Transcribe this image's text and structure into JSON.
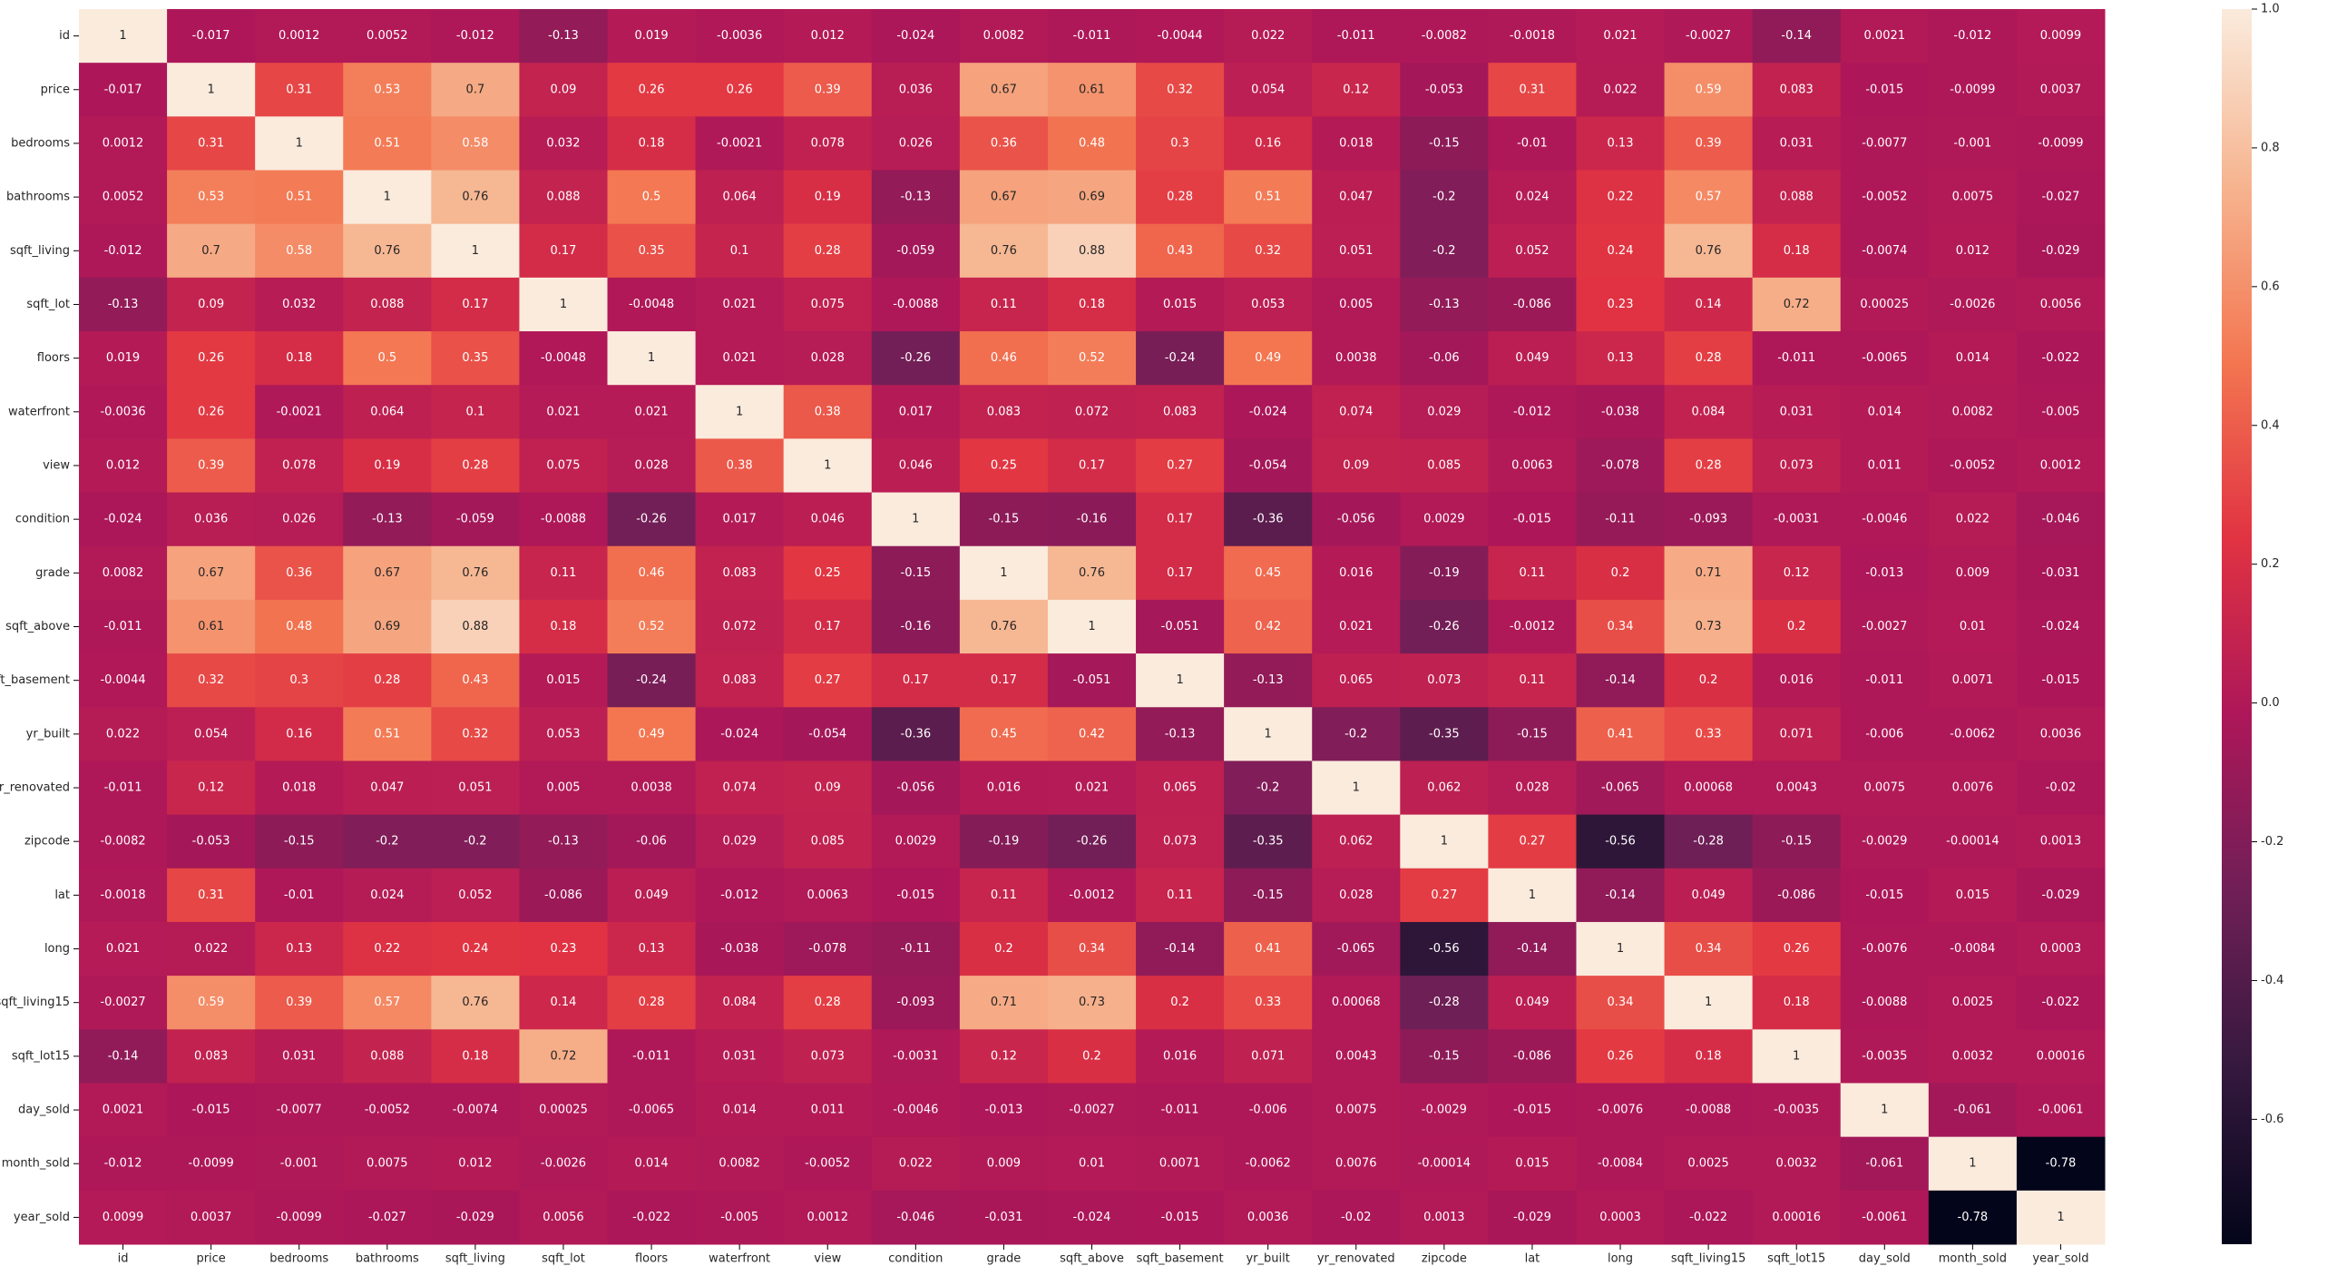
{
  "chart_data": {
    "type": "heatmap",
    "categories": [
      "id",
      "price",
      "bedrooms",
      "bathrooms",
      "sqft_living",
      "sqft_lot",
      "floors",
      "waterfront",
      "view",
      "condition",
      "grade",
      "sqft_above",
      "sqft_basement",
      "yr_built",
      "yr_renovated",
      "zipcode",
      "lat",
      "long",
      "sqft_living15",
      "sqft_lot15",
      "day_sold",
      "month_sold",
      "year_sold"
    ],
    "values": [
      [
        1,
        -0.017,
        0.0012,
        0.0052,
        -0.012,
        -0.13,
        0.019,
        -0.0036,
        0.012,
        -0.024,
        0.0082,
        -0.011,
        -0.0044,
        0.022,
        -0.011,
        -0.0082,
        -0.0018,
        0.021,
        -0.0027,
        -0.14,
        0.0021,
        -0.012,
        0.0099
      ],
      [
        -0.017,
        1,
        0.31,
        0.53,
        0.7,
        0.09,
        0.26,
        0.26,
        0.39,
        0.036,
        0.67,
        0.61,
        0.32,
        0.054,
        0.12,
        -0.053,
        0.31,
        0.022,
        0.59,
        0.083,
        -0.015,
        -0.0099,
        0.0037
      ],
      [
        0.0012,
        0.31,
        1,
        0.51,
        0.58,
        0.032,
        0.18,
        -0.0021,
        0.078,
        0.026,
        0.36,
        0.48,
        0.3,
        0.16,
        0.018,
        -0.15,
        -0.01,
        0.13,
        0.39,
        0.031,
        -0.0077,
        -0.001,
        -0.0099
      ],
      [
        0.0052,
        0.53,
        0.51,
        1,
        0.76,
        0.088,
        0.5,
        0.064,
        0.19,
        -0.13,
        0.67,
        0.69,
        0.28,
        0.51,
        0.047,
        -0.2,
        0.024,
        0.22,
        0.57,
        0.088,
        -0.0052,
        0.0075,
        -0.027
      ],
      [
        -0.012,
        0.7,
        0.58,
        0.76,
        1,
        0.17,
        0.35,
        0.1,
        0.28,
        -0.059,
        0.76,
        0.88,
        0.43,
        0.32,
        0.051,
        -0.2,
        0.052,
        0.24,
        0.76,
        0.18,
        -0.0074,
        0.012,
        -0.029
      ],
      [
        -0.13,
        0.09,
        0.032,
        0.088,
        0.17,
        1,
        -0.0048,
        0.021,
        0.075,
        -0.0088,
        0.11,
        0.18,
        0.015,
        0.053,
        0.005,
        -0.13,
        -0.086,
        0.23,
        0.14,
        0.72,
        0.00025,
        -0.0026,
        0.0056
      ],
      [
        0.019,
        0.26,
        0.18,
        0.5,
        0.35,
        -0.0048,
        1,
        0.021,
        0.028,
        -0.26,
        0.46,
        0.52,
        -0.24,
        0.49,
        0.0038,
        -0.06,
        0.049,
        0.13,
        0.28,
        -0.011,
        -0.0065,
        0.014,
        -0.022
      ],
      [
        -0.0036,
        0.26,
        -0.0021,
        0.064,
        0.1,
        0.021,
        0.021,
        1,
        0.38,
        0.017,
        0.083,
        0.072,
        0.083,
        -0.024,
        0.074,
        0.029,
        -0.012,
        -0.038,
        0.084,
        0.031,
        0.014,
        0.0082,
        -0.005
      ],
      [
        0.012,
        0.39,
        0.078,
        0.19,
        0.28,
        0.075,
        0.028,
        0.38,
        1,
        0.046,
        0.25,
        0.17,
        0.27,
        -0.054,
        0.09,
        0.085,
        0.0063,
        -0.078,
        0.28,
        0.073,
        0.011,
        -0.0052,
        0.0012
      ],
      [
        -0.024,
        0.036,
        0.026,
        -0.13,
        -0.059,
        -0.0088,
        -0.26,
        0.017,
        0.046,
        1,
        -0.15,
        -0.16,
        0.17,
        -0.36,
        -0.056,
        0.0029,
        -0.015,
        -0.11,
        -0.093,
        -0.0031,
        -0.0046,
        0.022,
        -0.046
      ],
      [
        0.0082,
        0.67,
        0.36,
        0.67,
        0.76,
        0.11,
        0.46,
        0.083,
        0.25,
        -0.15,
        1,
        0.76,
        0.17,
        0.45,
        0.016,
        -0.19,
        0.11,
        0.2,
        0.71,
        0.12,
        -0.013,
        0.009,
        -0.031
      ],
      [
        -0.011,
        0.61,
        0.48,
        0.69,
        0.88,
        0.18,
        0.52,
        0.072,
        0.17,
        -0.16,
        0.76,
        1,
        -0.051,
        0.42,
        0.021,
        -0.26,
        -0.0012,
        0.34,
        0.73,
        0.2,
        -0.0027,
        0.01,
        -0.024
      ],
      [
        -0.0044,
        0.32,
        0.3,
        0.28,
        0.43,
        0.015,
        -0.24,
        0.083,
        0.27,
        0.17,
        0.17,
        -0.051,
        1,
        -0.13,
        0.065,
        0.073,
        0.11,
        -0.14,
        0.2,
        0.016,
        -0.011,
        0.0071,
        -0.015
      ],
      [
        0.022,
        0.054,
        0.16,
        0.51,
        0.32,
        0.053,
        0.49,
        -0.024,
        -0.054,
        -0.36,
        0.45,
        0.42,
        -0.13,
        1,
        -0.2,
        -0.35,
        -0.15,
        0.41,
        0.33,
        0.071,
        -0.006,
        -0.0062,
        0.0036
      ],
      [
        -0.011,
        0.12,
        0.018,
        0.047,
        0.051,
        0.005,
        0.0038,
        0.074,
        0.09,
        -0.056,
        0.016,
        0.021,
        0.065,
        -0.2,
        1,
        0.062,
        0.028,
        -0.065,
        0.00068,
        0.0043,
        0.0075,
        0.0076,
        -0.02
      ],
      [
        -0.0082,
        -0.053,
        -0.15,
        -0.2,
        -0.2,
        -0.13,
        -0.06,
        0.029,
        0.085,
        0.0029,
        -0.19,
        -0.26,
        0.073,
        -0.35,
        0.062,
        1,
        0.27,
        -0.56,
        -0.28,
        -0.15,
        -0.0029,
        -0.00014,
        0.0013
      ],
      [
        -0.0018,
        0.31,
        -0.01,
        0.024,
        0.052,
        -0.086,
        0.049,
        -0.012,
        0.0063,
        -0.015,
        0.11,
        -0.0012,
        0.11,
        -0.15,
        0.028,
        0.27,
        1,
        -0.14,
        0.049,
        -0.086,
        -0.015,
        0.015,
        -0.029
      ],
      [
        0.021,
        0.022,
        0.13,
        0.22,
        0.24,
        0.23,
        0.13,
        -0.038,
        -0.078,
        -0.11,
        0.2,
        0.34,
        -0.14,
        0.41,
        -0.065,
        -0.56,
        -0.14,
        1,
        0.34,
        0.26,
        -0.0076,
        -0.0084,
        0.0003
      ],
      [
        -0.0027,
        0.59,
        0.39,
        0.57,
        0.76,
        0.14,
        0.28,
        0.084,
        0.28,
        -0.093,
        0.71,
        0.73,
        0.2,
        0.33,
        0.00068,
        -0.28,
        0.049,
        0.34,
        1,
        0.18,
        -0.0088,
        0.0025,
        -0.022
      ],
      [
        -0.14,
        0.083,
        0.031,
        0.088,
        0.18,
        0.72,
        -0.011,
        0.031,
        0.073,
        -0.0031,
        0.12,
        0.2,
        0.016,
        0.071,
        0.0043,
        -0.15,
        -0.086,
        0.26,
        0.18,
        1,
        -0.0035,
        0.0032,
        0.00016
      ],
      [
        0.0021,
        -0.015,
        -0.0077,
        -0.0052,
        -0.0074,
        0.00025,
        -0.0065,
        0.014,
        0.011,
        -0.0046,
        -0.013,
        -0.0027,
        -0.011,
        -0.006,
        0.0075,
        -0.0029,
        -0.015,
        -0.0076,
        -0.0088,
        -0.0035,
        1,
        -0.061,
        -0.0061
      ],
      [
        -0.012,
        -0.0099,
        -0.001,
        0.0075,
        0.012,
        -0.0026,
        0.014,
        0.0082,
        -0.0052,
        0.022,
        0.009,
        0.01,
        0.0071,
        -0.0062,
        0.0076,
        -0.00014,
        0.015,
        -0.0084,
        0.0025,
        0.0032,
        -0.061,
        1,
        -0.78
      ],
      [
        0.0099,
        0.0037,
        -0.0099,
        -0.027,
        -0.029,
        0.0056,
        -0.022,
        -0.005,
        0.0012,
        -0.046,
        -0.031,
        -0.024,
        -0.015,
        0.0036,
        -0.02,
        0.0013,
        -0.029,
        0.0003,
        -0.022,
        0.00016,
        -0.0061,
        -0.78,
        1
      ]
    ],
    "clim": [
      -0.78,
      1
    ],
    "cticks": [
      -0.6,
      -0.4,
      -0.2,
      {
        "value": 0,
        "label": "0.0"
      },
      0.2,
      0.4,
      0.6,
      0.8,
      {
        "value": 1,
        "label": "1.0"
      }
    ],
    "colorscale": [
      "#03051a",
      "#35193e",
      "#701f57",
      "#ad1759",
      "#e13342",
      "#f37651",
      "#f6b48f",
      "#faebdd"
    ]
  }
}
